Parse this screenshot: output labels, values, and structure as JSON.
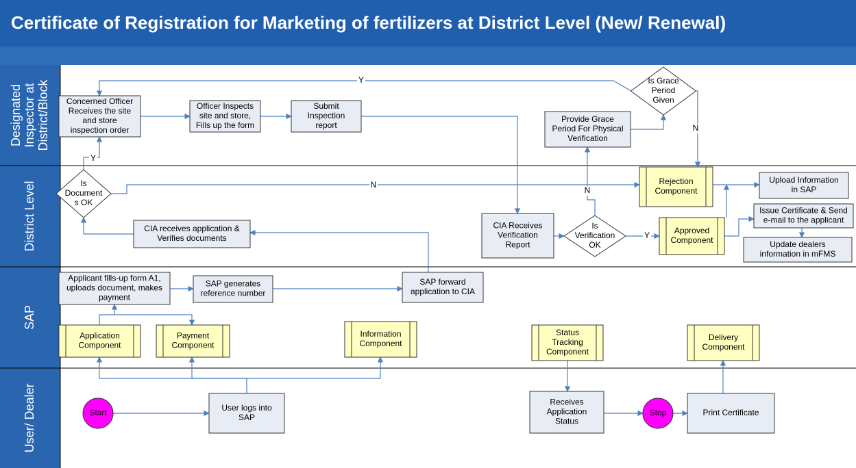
{
  "header": {
    "title": "Certificate of Registration for Marketing of fertilizers at District Level (New/ Renewal)"
  },
  "lanes": [
    {
      "lines": [
        "Designated",
        "Inspector at",
        "District/Block"
      ]
    },
    {
      "lines": [
        "District Level"
      ]
    },
    {
      "lines": [
        "SAP"
      ]
    },
    {
      "lines": [
        "User/ Dealer"
      ]
    }
  ],
  "nodes": [
    {
      "lines": [
        "Concerned Officer",
        "Receives the site",
        "and store",
        "inspection order"
      ]
    },
    {
      "lines": [
        "Officer Inspects",
        "site and store,",
        "Fills up the form"
      ]
    },
    {
      "lines": [
        "Submit",
        "Inspection",
        "report"
      ]
    },
    {
      "lines": [
        "Is Grace",
        "Period",
        "Given"
      ]
    },
    {
      "lines": [
        "Provide Grace",
        "Period For Physical",
        "Verification"
      ]
    },
    {
      "lines": [
        "Is",
        "Document",
        "s OK"
      ]
    },
    {
      "lines": [
        "Rejection",
        "Component"
      ]
    },
    {
      "lines": [
        "Upload Information",
        "in SAP"
      ]
    },
    {
      "lines": [
        "CIA receives application &",
        "Verifies documents"
      ]
    },
    {
      "lines": [
        "CIA Receives",
        "Verification",
        "Report"
      ]
    },
    {
      "lines": [
        "Is",
        "Verification",
        "OK"
      ]
    },
    {
      "lines": [
        "Approved",
        "Component"
      ]
    },
    {
      "lines": [
        "Issue Certificate & Send",
        "e-mail to the applicant"
      ]
    },
    {
      "lines": [
        "Update dealers",
        "information in mFMS"
      ]
    },
    {
      "lines": [
        "Applicant fills-up form A1,",
        "uploads document, makes",
        "payment"
      ]
    },
    {
      "lines": [
        "SAP generates",
        "reference number"
      ]
    },
    {
      "lines": [
        "SAP forward",
        "application to CIA"
      ]
    },
    {
      "lines": [
        "Application",
        "Component"
      ]
    },
    {
      "lines": [
        "Payment",
        "Component"
      ]
    },
    {
      "lines": [
        "Information",
        "Component"
      ]
    },
    {
      "lines": [
        "Status",
        "Tracking",
        "Component"
      ]
    },
    {
      "lines": [
        "Delivery",
        "Component"
      ]
    },
    {
      "lines": [
        "Start"
      ]
    },
    {
      "lines": [
        "User logs into",
        "SAP"
      ]
    },
    {
      "lines": [
        "Receives",
        "Application",
        "Status"
      ]
    },
    {
      "lines": [
        "Stop"
      ]
    },
    {
      "lines": [
        "Print Certificate"
      ]
    }
  ],
  "edge_labels": [
    "Y",
    "N",
    "Y",
    "N",
    "N",
    "Y"
  ]
}
